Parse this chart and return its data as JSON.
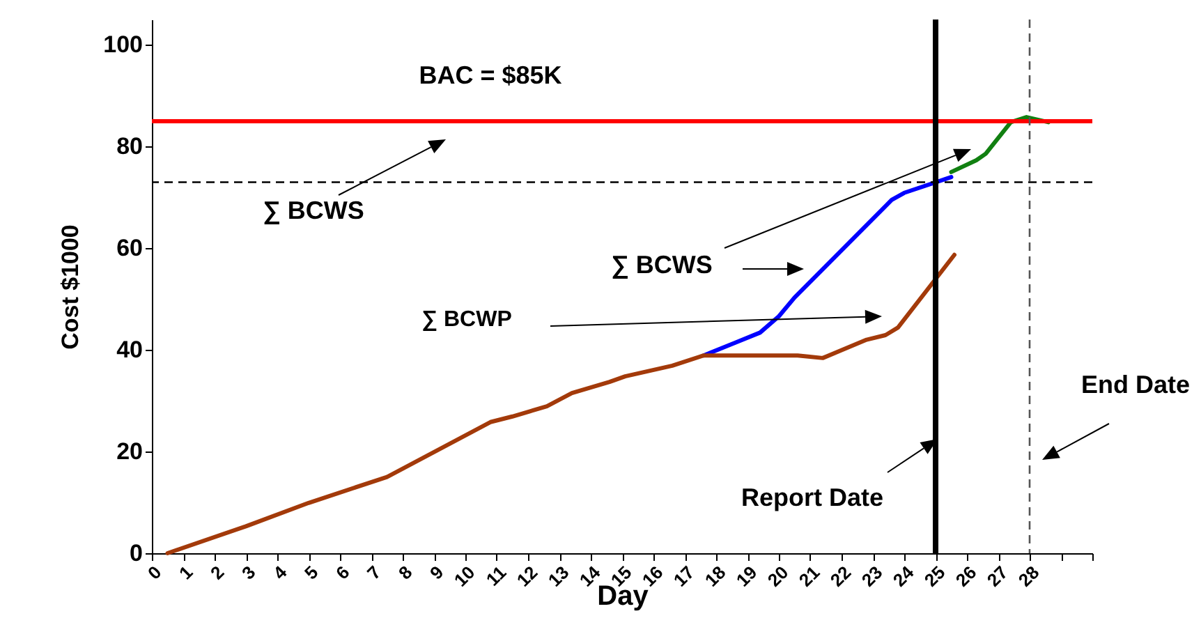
{
  "chart_data": {
    "type": "line",
    "xlabel": "Day",
    "ylabel": "Cost  $1000",
    "xlim": [
      0,
      30
    ],
    "ylim": [
      0,
      105
    ],
    "xticks": [
      0,
      1,
      2,
      3,
      4,
      5,
      6,
      7,
      8,
      9,
      10,
      11,
      12,
      13,
      14,
      15,
      16,
      17,
      18,
      19,
      20,
      21,
      22,
      23,
      24,
      25,
      26,
      27,
      28,
      {
        "value": 29,
        "label": null
      },
      {
        "value": 30,
        "label": null
      }
    ],
    "yticks": [
      0,
      20,
      40,
      60,
      80,
      100
    ],
    "grid": false,
    "marker": "none",
    "line_style": "solid",
    "series": [
      {
        "color": "#0000ff",
        "x": [
          17.6,
          18.6,
          19.4,
          20.0,
          20.5,
          23.6,
          24.0,
          25.5
        ],
        "values": [
          38.9,
          41.4,
          43.4,
          46.6,
          50.3,
          69.5,
          70.9,
          74.0
        ]
      },
      {
        "color": "#a33a0a",
        "x": [
          0.5,
          3,
          5,
          7.5,
          10.8,
          11.5,
          12.6,
          13.4,
          14.6,
          15.1,
          16.6,
          17.6,
          20.6,
          21.4,
          22.8,
          23.4,
          23.8,
          25.6
        ],
        "values": [
          0,
          5.3,
          9.9,
          15.0,
          25.8,
          26.9,
          28.9,
          31.5,
          33.7,
          34.8,
          36.9,
          38.9,
          38.9,
          38.4,
          42.0,
          42.9,
          44.4,
          58.7
        ]
      },
      {
        "color": "#118011",
        "x": [
          25.5,
          26.3,
          26.6,
          27.4,
          27.9,
          28.6
        ],
        "values": [
          75.0,
          77.3,
          78.6,
          84.8,
          85.8,
          84.8
        ]
      }
    ],
    "ref_lines": [
      {
        "axis": "y",
        "value": 85,
        "color": "#ff0000",
        "line_style": "solid"
      },
      {
        "axis": "y",
        "value": 73,
        "color": "#000000",
        "line_style": "dashed"
      },
      {
        "axis": "x",
        "value": 25,
        "color": "#000000",
        "line_style": "solid"
      },
      {
        "axis": "x",
        "value": 28,
        "color": "#555555",
        "line_style": "dashed"
      }
    ],
    "annotations": [
      "BAC = $85K",
      "∑ BCWS",
      "∑ BCWS",
      "∑ BCWP",
      "Report Date",
      "End Date"
    ]
  }
}
